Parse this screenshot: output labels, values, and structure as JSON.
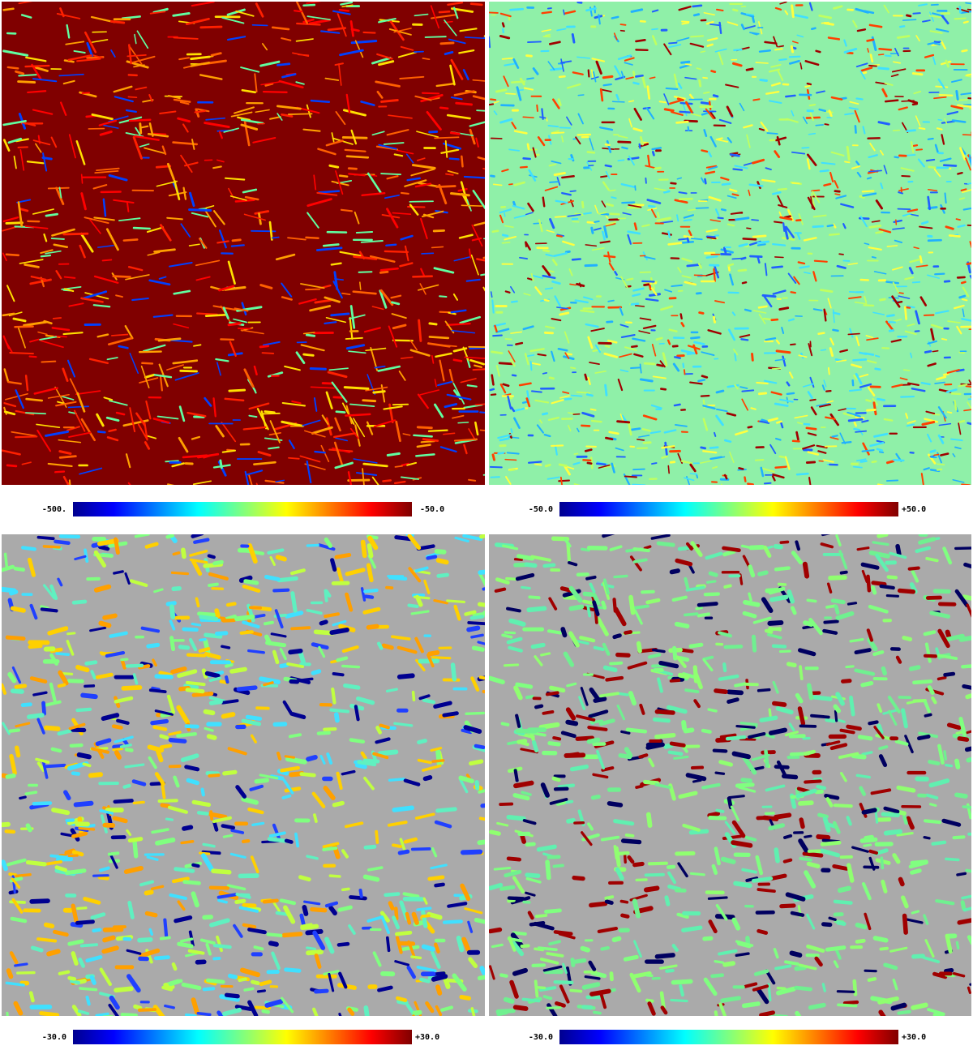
{
  "panels": [
    {
      "colorbar": {
        "min_label": "-500.",
        "max_label": "-50.0"
      }
    },
    {
      "colorbar": {
        "min_label": "-50.0",
        "max_label": "+50.0"
      }
    },
    {
      "colorbar": {
        "min_label": "-30.0",
        "max_label": "+30.0"
      }
    },
    {
      "colorbar": {
        "min_label": "-30.0",
        "max_label": "+30.0"
      }
    }
  ]
}
